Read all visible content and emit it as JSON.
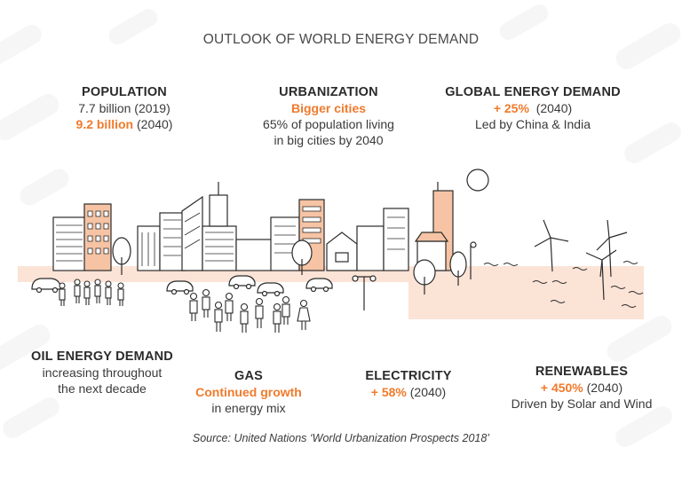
{
  "title": "OUTLOOK OF WORLD ENERGY DEMAND",
  "population": {
    "heading": "POPULATION",
    "line1": "7.7 billion (2019)",
    "highlight": "9.2 billion",
    "highlight_suffix": " (2040)"
  },
  "urbanization": {
    "heading": "URBANIZATION",
    "highlight": "Bigger cities",
    "line1": "65% of population living",
    "line2": "in big cities by 2040"
  },
  "global_demand": {
    "heading": "GLOBAL ENERGY DEMAND",
    "highlight": "+ 25%",
    "highlight_suffix": "  (2040)",
    "line1": "Led by China & India"
  },
  "oil": {
    "heading": "OIL ENERGY DEMAND",
    "line1": "increasing throughout",
    "line2": "the next decade"
  },
  "gas": {
    "heading": "GAS",
    "highlight": "Continued growth",
    "line1": "in energy mix"
  },
  "electricity": {
    "heading": "ELECTRICITY",
    "highlight": "+ 58%",
    "highlight_suffix": " (2040)"
  },
  "renewables": {
    "heading": "RENEWABLES",
    "highlight": "+ 450%",
    "highlight_suffix": " (2040)",
    "line1": "Driven by Solar and Wind"
  },
  "source": "Source: United Nations ‘World Urbanization Prospects 2018’",
  "colors": {
    "accent": "#f07a2c",
    "ground": "#fbe3d6",
    "ink": "#2b2b2b"
  },
  "icons": [
    "city-skyline-icon",
    "sun-icon",
    "wind-turbine-icon",
    "car-icon",
    "person-icon",
    "tree-icon",
    "street-lamp-icon"
  ]
}
